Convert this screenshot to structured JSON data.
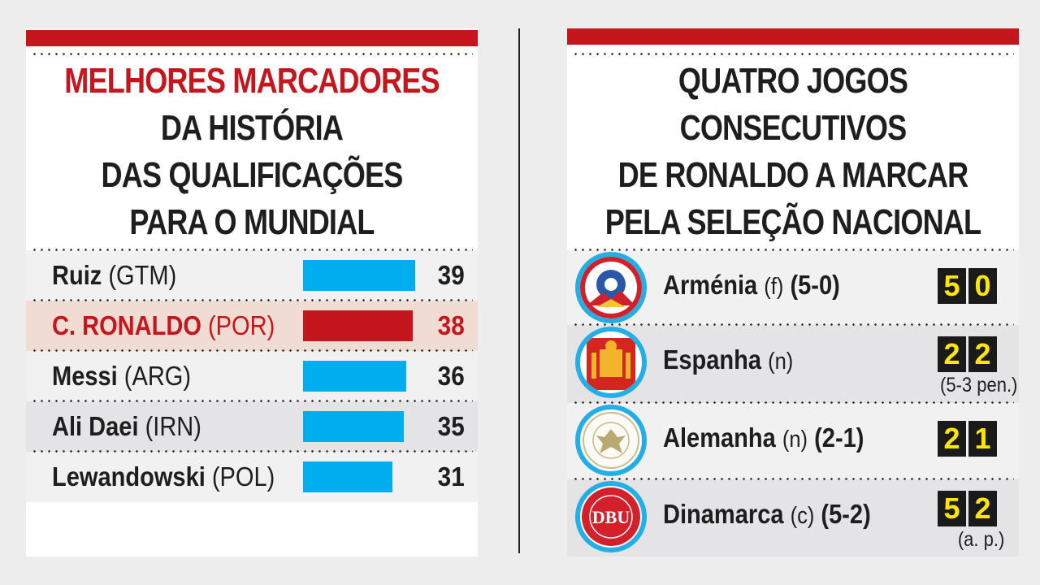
{
  "left": {
    "title_lines": [
      "MELHORES MARCADORES",
      "DA HISTÓRIA",
      "DAS QUALIFICAÇÕES",
      "PARA O MUNDIAL"
    ],
    "rows": [
      {
        "name": "Ruiz",
        "country": "(GTM)",
        "value": "39",
        "highlight": false
      },
      {
        "name": "C. RONALDO",
        "country": "(POR)",
        "value": "38",
        "highlight": true
      },
      {
        "name": "Messi",
        "country": "(ARG)",
        "value": "36",
        "highlight": false
      },
      {
        "name": "Ali Daei",
        "country": "(IRN)",
        "value": "35",
        "highlight": false
      },
      {
        "name": "Lewandowski",
        "country": "(POL)",
        "value": "31",
        "highlight": false
      }
    ]
  },
  "chart_data": {
    "type": "bar",
    "orientation": "horizontal",
    "title": "MELHORES MARCADORES DA HISTÓRIA DAS QUALIFICAÇÕES PARA O MUNDIAL",
    "categories": [
      "Ruiz (GTM)",
      "C. RONALDO (POR)",
      "Messi (ARG)",
      "Ali Daei (IRN)",
      "Lewandowski (POL)"
    ],
    "values": [
      39,
      38,
      36,
      35,
      31
    ],
    "colors": {
      "default": "#00aeef",
      "highlight": "#c4161c"
    }
  },
  "right": {
    "title_lines": [
      "QUATRO JOGOS",
      "CONSECUTIVOS",
      "DE RONALDO A MARCAR",
      "PELA SELEÇÃO NACIONAL"
    ],
    "matches": [
      {
        "team": "Arménia",
        "venue": "(f)",
        "result": "(5-0)",
        "score": [
          "5",
          "0"
        ],
        "note": "",
        "logo": "armenia-crest"
      },
      {
        "team": "Espanha",
        "venue": "(n)",
        "result": "",
        "score": [
          "2",
          "2"
        ],
        "note": "(5-3 pen.)",
        "logo": "spain-crest"
      },
      {
        "team": "Alemanha",
        "venue": "(n)",
        "result": "(2-1)",
        "score": [
          "2",
          "1"
        ],
        "note": "",
        "logo": "germany-crest"
      },
      {
        "team": "Dinamarca",
        "venue": "(c)",
        "result": "(5-2)",
        "score": [
          "5",
          "2"
        ],
        "note": "(a. p.)",
        "logo": "denmark-crest"
      }
    ],
    "logo_texts": {
      "denmark": "DBU"
    }
  },
  "colors": {
    "accent": "#c4161c",
    "bar": "#00aeef",
    "score_digit": "#ffe600",
    "score_bg": "#1a1a1a"
  }
}
